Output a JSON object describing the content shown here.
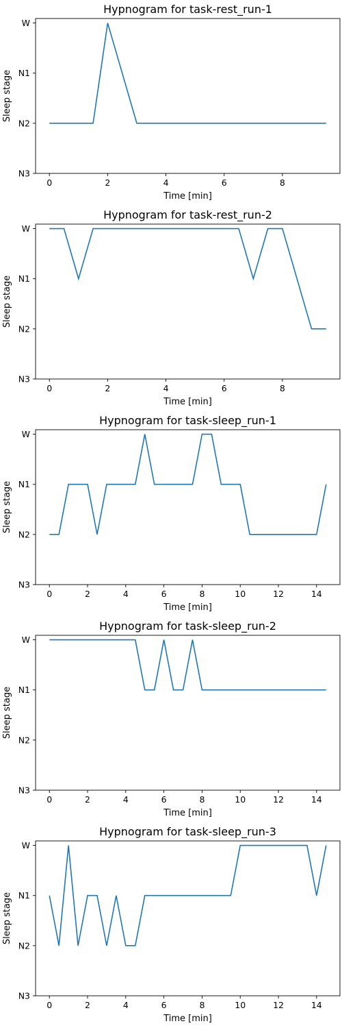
{
  "chart_data": [
    {
      "type": "line",
      "title": "Hypnogram for task-rest_run-1",
      "xlabel": "Time [min]",
      "ylabel": "Sleep stage",
      "xticks": [
        0,
        2,
        4,
        6,
        8
      ],
      "xlim": [
        -0.475,
        9.975
      ],
      "y_categories": [
        "W",
        "N1",
        "N2",
        "N3"
      ],
      "grid": false,
      "color": "#1f77b4",
      "x": [
        0,
        0.5,
        1,
        1.5,
        2,
        2.5,
        3,
        3.5,
        4,
        4.5,
        5,
        5.5,
        6,
        6.5,
        7,
        7.5,
        8,
        8.5,
        9,
        9.5
      ],
      "values": [
        "N2",
        "N2",
        "N2",
        "N2",
        "W",
        "N1",
        "N2",
        "N2",
        "N2",
        "N2",
        "N2",
        "N2",
        "N2",
        "N2",
        "N2",
        "N2",
        "N2",
        "N2",
        "N2",
        "N2"
      ]
    },
    {
      "type": "line",
      "title": "Hypnogram for task-rest_run-2",
      "xlabel": "Time [min]",
      "ylabel": "Sleep stage",
      "xticks": [
        0,
        2,
        4,
        6,
        8
      ],
      "xlim": [
        -0.475,
        9.975
      ],
      "y_categories": [
        "W",
        "N1",
        "N2",
        "N3"
      ],
      "grid": false,
      "color": "#1f77b4",
      "x": [
        0,
        0.5,
        1,
        1.5,
        2,
        2.5,
        3,
        3.5,
        4,
        4.5,
        5,
        5.5,
        6,
        6.5,
        7,
        7.5,
        8,
        8.5,
        9,
        9.5
      ],
      "values": [
        "W",
        "W",
        "N1",
        "W",
        "W",
        "W",
        "W",
        "W",
        "W",
        "W",
        "W",
        "W",
        "W",
        "W",
        "N1",
        "W",
        "W",
        "N1",
        "N2",
        "N2"
      ]
    },
    {
      "type": "line",
      "title": "Hypnogram for task-sleep_run-1",
      "xlabel": "Time [min]",
      "ylabel": "Sleep stage",
      "xticks": [
        0,
        2,
        4,
        6,
        8,
        10,
        12,
        14
      ],
      "xlim": [
        -0.725,
        15.225
      ],
      "y_categories": [
        "W",
        "N1",
        "N2",
        "N3"
      ],
      "grid": false,
      "color": "#1f77b4",
      "x": [
        0,
        0.5,
        1,
        1.5,
        2,
        2.5,
        3,
        3.5,
        4,
        4.5,
        5,
        5.5,
        6,
        6.5,
        7,
        7.5,
        8,
        8.5,
        9,
        9.5,
        10,
        10.5,
        11,
        11.5,
        12,
        12.5,
        13,
        13.5,
        14,
        14.5
      ],
      "values": [
        "N2",
        "N2",
        "N1",
        "N1",
        "N1",
        "N2",
        "N1",
        "N1",
        "N1",
        "N1",
        "W",
        "N1",
        "N1",
        "N1",
        "N1",
        "N1",
        "W",
        "W",
        "N1",
        "N1",
        "N1",
        "N2",
        "N2",
        "N2",
        "N2",
        "N2",
        "N2",
        "N2",
        "N2",
        "N1"
      ]
    },
    {
      "type": "line",
      "title": "Hypnogram for task-sleep_run-2",
      "xlabel": "Time [min]",
      "ylabel": "Sleep stage",
      "xticks": [
        0,
        2,
        4,
        6,
        8,
        10,
        12,
        14
      ],
      "xlim": [
        -0.725,
        15.225
      ],
      "y_categories": [
        "W",
        "N1",
        "N2",
        "N3"
      ],
      "grid": false,
      "color": "#1f77b4",
      "x": [
        0,
        0.5,
        1,
        1.5,
        2,
        2.5,
        3,
        3.5,
        4,
        4.5,
        5,
        5.5,
        6,
        6.5,
        7,
        7.5,
        8,
        8.5,
        9,
        9.5,
        10,
        10.5,
        11,
        11.5,
        12,
        12.5,
        13,
        13.5,
        14,
        14.5
      ],
      "values": [
        "W",
        "W",
        "W",
        "W",
        "W",
        "W",
        "W",
        "W",
        "W",
        "W",
        "N1",
        "N1",
        "W",
        "N1",
        "N1",
        "W",
        "N1",
        "N1",
        "N1",
        "N1",
        "N1",
        "N1",
        "N1",
        "N1",
        "N1",
        "N1",
        "N1",
        "N1",
        "N1",
        "N1"
      ]
    },
    {
      "type": "line",
      "title": "Hypnogram for task-sleep_run-3",
      "xlabel": "Time [min]",
      "ylabel": "Sleep stage",
      "xticks": [
        0,
        2,
        4,
        6,
        8,
        10,
        12,
        14
      ],
      "xlim": [
        -0.725,
        15.225
      ],
      "y_categories": [
        "W",
        "N1",
        "N2",
        "N3"
      ],
      "grid": false,
      "color": "#1f77b4",
      "x": [
        0,
        0.5,
        1,
        1.5,
        2,
        2.5,
        3,
        3.5,
        4,
        4.5,
        5,
        5.5,
        6,
        6.5,
        7,
        7.5,
        8,
        8.5,
        9,
        9.5,
        10,
        10.5,
        11,
        11.5,
        12,
        12.5,
        13,
        13.5,
        14,
        14.5
      ],
      "values": [
        "N1",
        "N2",
        "W",
        "N2",
        "N1",
        "N1",
        "N2",
        "N1",
        "N2",
        "N2",
        "N1",
        "N1",
        "N1",
        "N1",
        "N1",
        "N1",
        "N1",
        "N1",
        "N1",
        "N1",
        "W",
        "W",
        "W",
        "W",
        "W",
        "W",
        "W",
        "W",
        "N1",
        "W"
      ]
    }
  ]
}
